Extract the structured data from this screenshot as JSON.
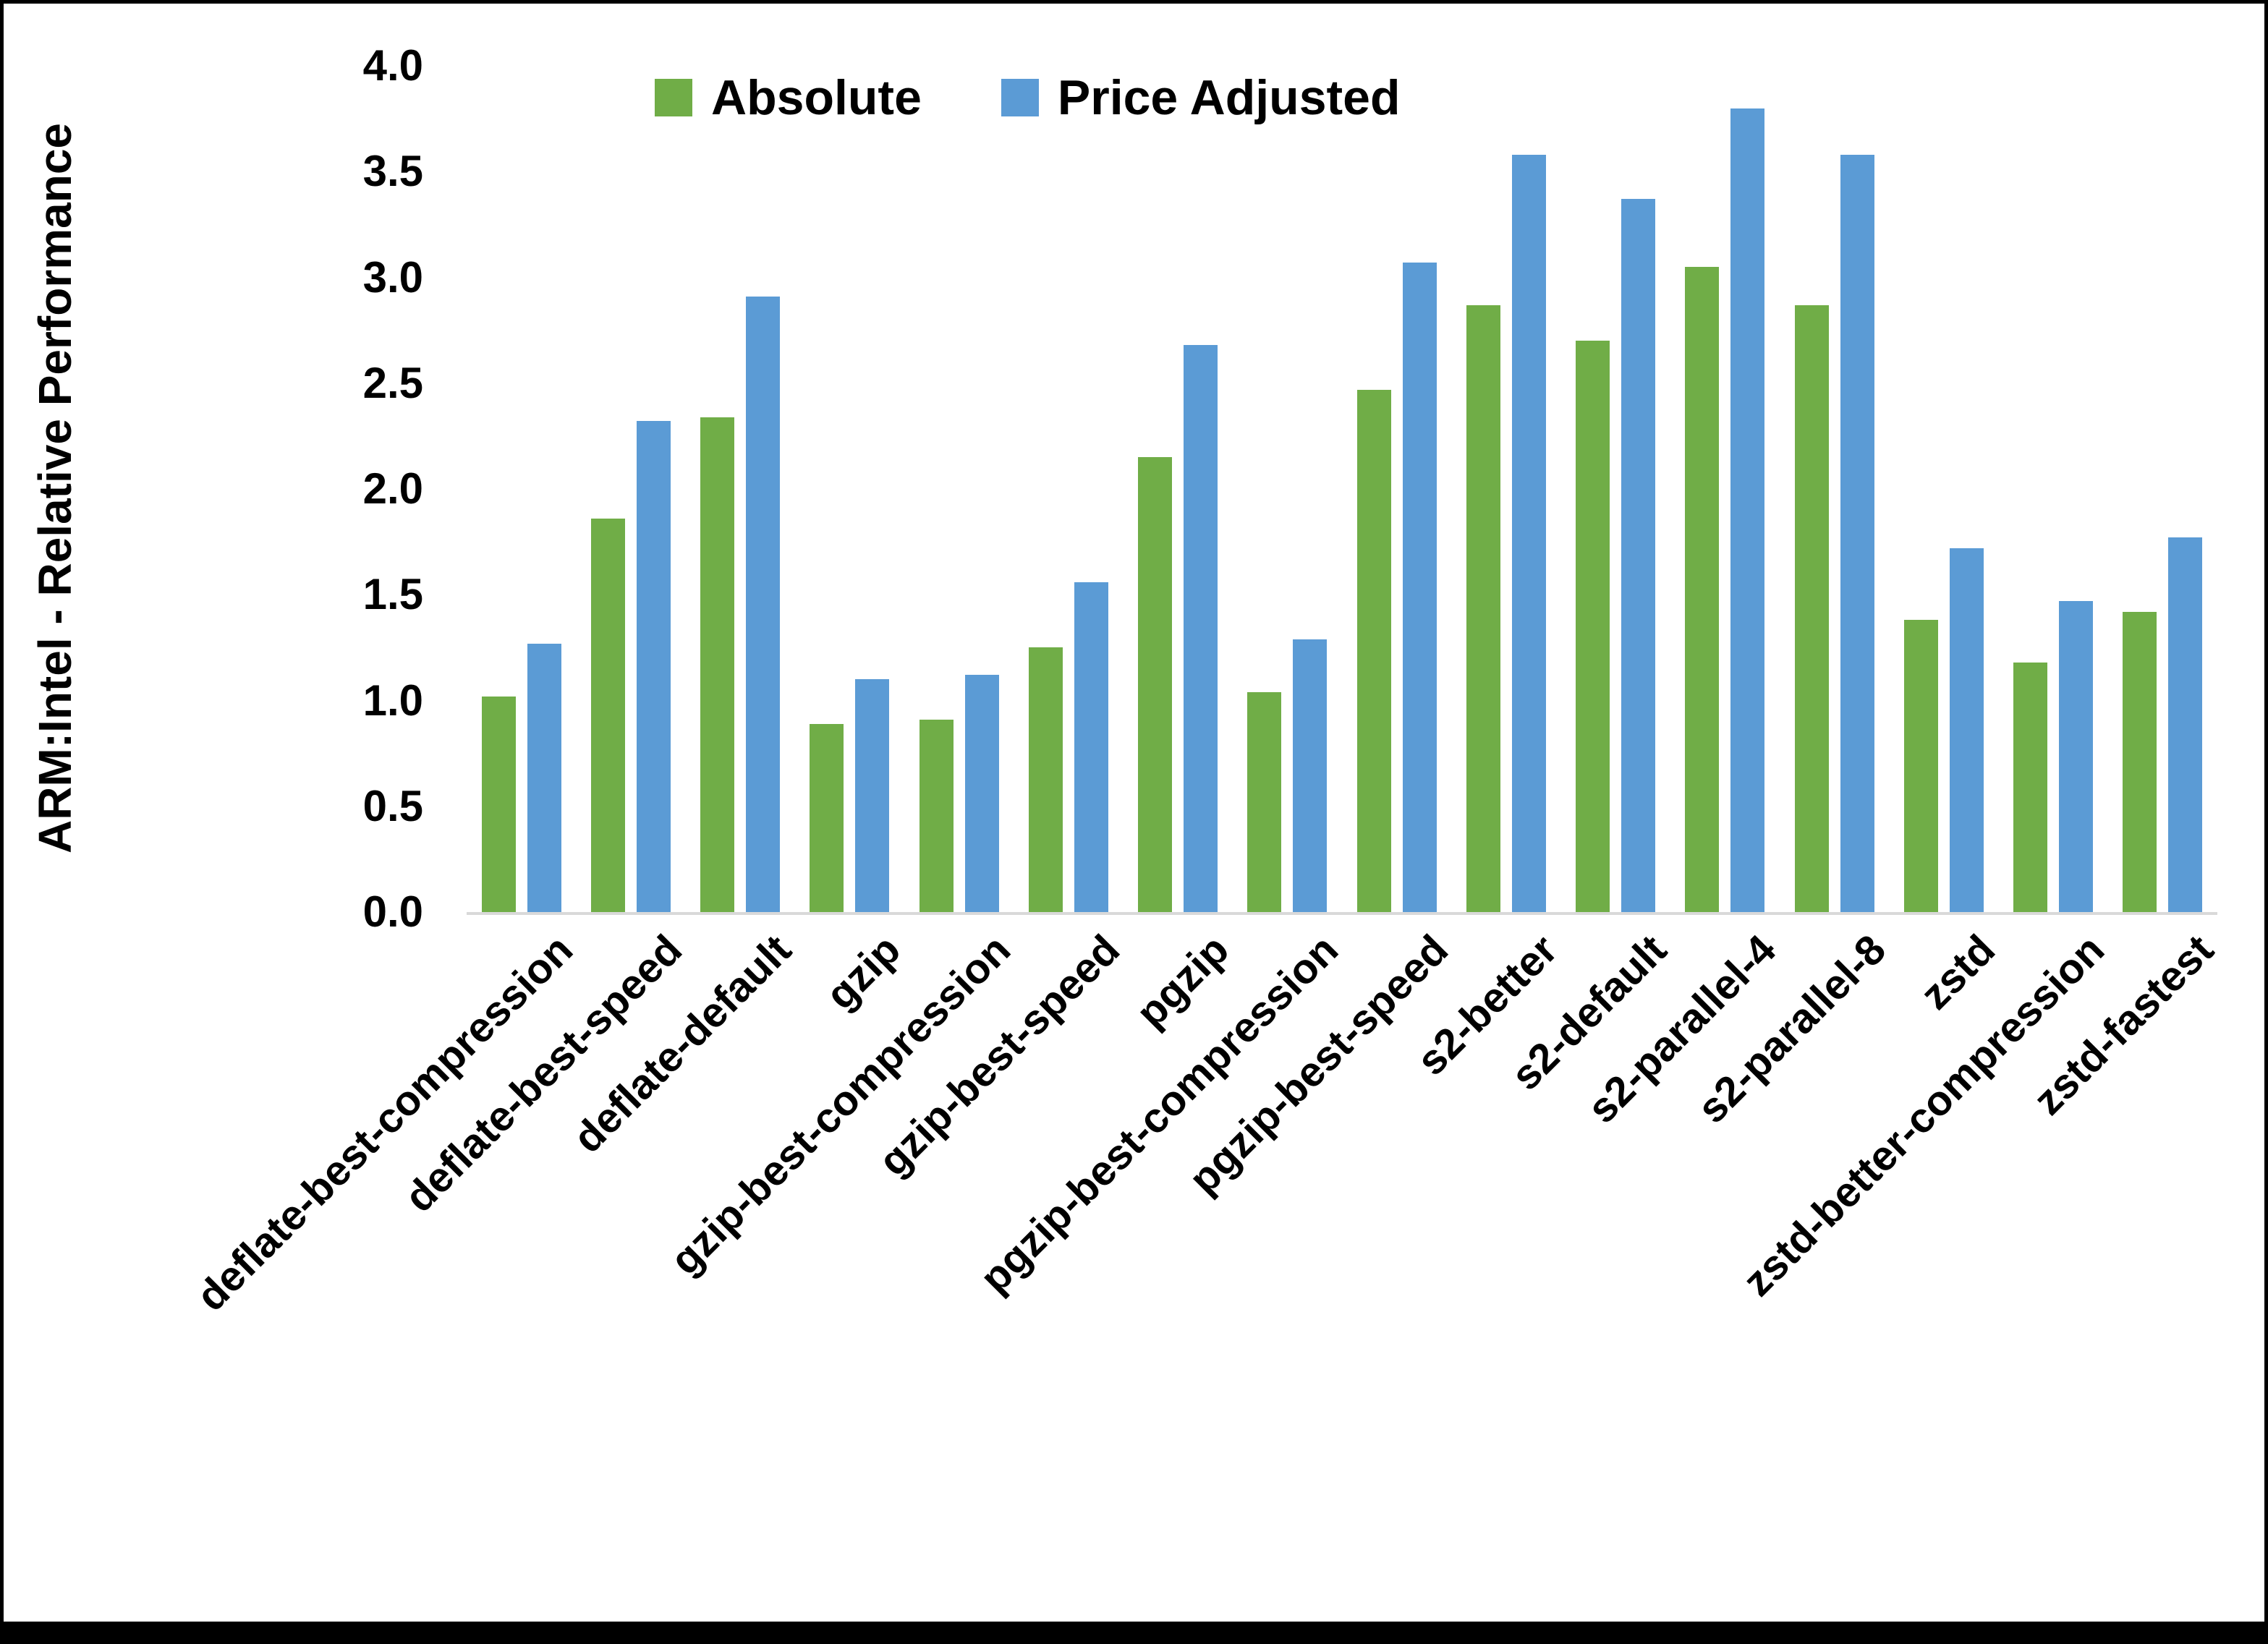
{
  "chart_data": {
    "type": "bar",
    "title": "",
    "xlabel": "",
    "ylabel": "ARM:Intel - Relative Performance",
    "ylim": [
      0.0,
      4.0
    ],
    "yticks": [
      0.0,
      0.5,
      1.0,
      1.5,
      2.0,
      2.5,
      3.0,
      3.5,
      4.0
    ],
    "grid": "off",
    "legend_position": "top",
    "categories": [
      "deflate-best-compression",
      "deflate-best-speed",
      "deflate-default",
      "gzip",
      "gzip-best-compression",
      "gzip-best-speed",
      "pgzip",
      "pgzip-best-compression",
      "pgzip-best-speed",
      "s2-better",
      "s2-default",
      "s2-parallel-4",
      "s2-parallel-8",
      "zstd",
      "zstd-better-compression",
      "zstd-fastest"
    ],
    "series": [
      {
        "name": "Absolute",
        "color": "#70AD47",
        "values": [
          1.02,
          1.86,
          2.34,
          0.89,
          0.91,
          1.25,
          2.15,
          1.04,
          2.47,
          2.87,
          2.7,
          3.05,
          2.87,
          1.38,
          1.18,
          1.42
        ]
      },
      {
        "name": "Price Adjusted",
        "color": "#5B9BD5",
        "values": [
          1.27,
          2.32,
          2.91,
          1.1,
          1.12,
          1.56,
          2.68,
          1.29,
          3.07,
          3.58,
          3.37,
          3.8,
          3.58,
          1.72,
          1.47,
          1.77
        ]
      }
    ],
    "colors": {
      "axis_line": "#d9d9d9",
      "text": "#000000",
      "background": "#ffffff",
      "frame_border": "#000000"
    }
  }
}
